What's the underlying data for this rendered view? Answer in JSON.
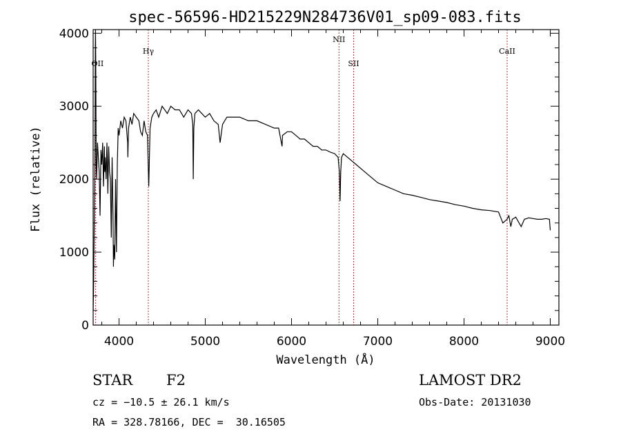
{
  "chart_data": {
    "type": "line",
    "title": "spec-56596-HD215229N284736V01_sp09-083.fits",
    "xlabel": "Wavelength (Å)",
    "ylabel": "Flux (relative)",
    "xlim": [
      3700,
      9100
    ],
    "ylim": [
      0,
      4050
    ],
    "x_ticks": [
      4000,
      5000,
      6000,
      7000,
      8000,
      9000
    ],
    "y_ticks": [
      0,
      1000,
      2000,
      3000,
      4000
    ],
    "grid": false,
    "line_markers": [
      {
        "label": "OII",
        "x": 3727
      },
      {
        "label": "Hγ",
        "x": 4340
      },
      {
        "label": "NII",
        "x": 6550
      },
      {
        "label": "SII",
        "x": 6720
      },
      {
        "label": "CaII",
        "x": 8500
      }
    ],
    "series": [
      {
        "x": [
          3700,
          3705,
          3710,
          3715,
          3720,
          3725,
          3727,
          3730,
          3735,
          3740,
          3750,
          3760,
          3770,
          3780,
          3790,
          3800,
          3810,
          3820,
          3830,
          3835,
          3840,
          3850,
          3860,
          3870,
          3880,
          3890,
          3900,
          3910,
          3920,
          3930,
          3935,
          3940,
          3950,
          3960,
          3965,
          3970,
          3980,
          3990,
          4000,
          4020,
          4040,
          4060,
          4080,
          4100,
          4102,
          4110,
          4130,
          4150,
          4170,
          4200,
          4230,
          4250,
          4270,
          4290,
          4310,
          4330,
          4340,
          4345,
          4360,
          4380,
          4400,
          4430,
          4460,
          4500,
          4530,
          4560,
          4600,
          4650,
          4700,
          4750,
          4800,
          4840,
          4855,
          4861,
          4867,
          4880,
          4920,
          4960,
          5000,
          5050,
          5100,
          5150,
          5172,
          5200,
          5250,
          5300,
          5400,
          5500,
          5600,
          5700,
          5800,
          5850,
          5890,
          5895,
          5950,
          6000,
          6050,
          6100,
          6150,
          6200,
          6250,
          6300,
          6350,
          6400,
          6450,
          6500,
          6540,
          6555,
          6563,
          6570,
          6580,
          6600,
          6650,
          6700,
          6750,
          6800,
          6900,
          7000,
          7100,
          7200,
          7300,
          7400,
          7500,
          7600,
          7700,
          7800,
          7900,
          8000,
          8100,
          8200,
          8300,
          8400,
          8450,
          8498,
          8520,
          8542,
          8560,
          8600,
          8662,
          8700,
          8750,
          8800,
          8850,
          8900,
          8950,
          8990,
          9000
        ],
        "y": [
          200,
          500,
          1100,
          1600,
          2050,
          3800,
          4050,
          3600,
          2200,
          2000,
          2500,
          2300,
          2100,
          1500,
          2400,
          2200,
          2500,
          1900,
          2450,
          2100,
          2300,
          2000,
          2500,
          1800,
          2450,
          2100,
          2000,
          1200,
          2300,
          1500,
          800,
          1100,
          900,
          2000,
          1500,
          1000,
          2200,
          2700,
          2600,
          2800,
          2700,
          2850,
          2800,
          2500,
          2300,
          2700,
          2850,
          2750,
          2900,
          2850,
          2800,
          2650,
          2600,
          2800,
          2650,
          2600,
          2100,
          1900,
          2700,
          2850,
          2900,
          2950,
          2850,
          3000,
          2950,
          2900,
          3000,
          2950,
          2950,
          2850,
          2950,
          2900,
          2750,
          2000,
          2700,
          2900,
          2950,
          2900,
          2850,
          2900,
          2800,
          2750,
          2500,
          2750,
          2850,
          2850,
          2850,
          2800,
          2800,
          2750,
          2700,
          2700,
          2450,
          2600,
          2650,
          2650,
          2600,
          2550,
          2550,
          2500,
          2450,
          2450,
          2400,
          2400,
          2370,
          2350,
          2300,
          2100,
          1700,
          2100,
          2300,
          2350,
          2300,
          2250,
          2200,
          2150,
          2050,
          1950,
          1900,
          1850,
          1800,
          1780,
          1750,
          1720,
          1700,
          1680,
          1650,
          1630,
          1600,
          1580,
          1570,
          1550,
          1400,
          1450,
          1500,
          1350,
          1450,
          1480,
          1350,
          1450,
          1470,
          1460,
          1450,
          1450,
          1460,
          1450,
          1300
        ],
        "color": "#000000"
      }
    ]
  },
  "info": {
    "object_class": "STAR",
    "subclass": "F2",
    "survey": "LAMOST DR2",
    "redshift": "cz = −10.5 ± 26.1 km/s",
    "obs_date": "Obs-Date: 20131030",
    "coords": "RA = 328.78166, DEC =  30.16505"
  }
}
